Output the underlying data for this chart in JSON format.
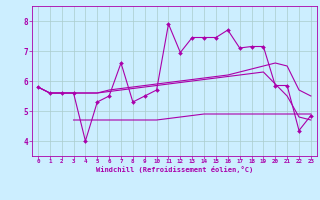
{
  "title": "",
  "xlabel": "Windchill (Refroidissement éolien,°C)",
  "background_color": "#cceeff",
  "grid_color": "#aacccc",
  "line_color": "#aa00aa",
  "xlim": [
    -0.5,
    23.5
  ],
  "ylim": [
    3.5,
    8.5
  ],
  "yticks": [
    4,
    5,
    6,
    7,
    8
  ],
  "xticks": [
    0,
    1,
    2,
    3,
    4,
    5,
    6,
    7,
    8,
    9,
    10,
    11,
    12,
    13,
    14,
    15,
    16,
    17,
    18,
    19,
    20,
    21,
    22,
    23
  ],
  "series1_x": [
    0,
    1,
    2,
    3,
    4,
    5,
    6,
    7,
    8,
    9,
    10,
    11,
    12,
    13,
    14,
    15,
    16,
    17,
    18,
    19,
    20,
    21,
    22,
    23
  ],
  "series1_y": [
    5.8,
    5.6,
    5.6,
    5.6,
    4.0,
    5.3,
    5.5,
    6.6,
    5.3,
    5.5,
    5.7,
    7.9,
    6.95,
    7.45,
    7.45,
    7.45,
    7.7,
    7.1,
    7.15,
    7.15,
    5.85,
    5.85,
    4.35,
    4.85
  ],
  "series2_x": [
    0,
    1,
    2,
    3,
    4,
    5,
    6,
    7,
    8,
    9,
    10,
    11,
    12,
    13,
    14,
    15,
    16,
    17,
    18,
    19,
    20,
    21,
    22,
    23
  ],
  "series2_y": [
    5.8,
    5.6,
    5.6,
    5.6,
    5.6,
    5.6,
    5.7,
    5.75,
    5.8,
    5.85,
    5.9,
    5.95,
    6.0,
    6.05,
    6.1,
    6.15,
    6.2,
    6.3,
    6.4,
    6.5,
    6.6,
    6.5,
    5.7,
    5.5
  ],
  "series3_x": [
    0,
    1,
    2,
    3,
    4,
    5,
    6,
    7,
    8,
    9,
    10,
    11,
    12,
    13,
    14,
    15,
    16,
    17,
    18,
    19,
    20,
    21,
    22,
    23
  ],
  "series3_y": [
    5.8,
    5.6,
    5.6,
    5.6,
    5.6,
    5.6,
    5.65,
    5.7,
    5.75,
    5.8,
    5.85,
    5.9,
    5.95,
    6.0,
    6.05,
    6.1,
    6.15,
    6.2,
    6.25,
    6.3,
    5.9,
    5.5,
    4.8,
    4.7
  ],
  "series4_x": [
    3,
    4,
    5,
    6,
    7,
    8,
    9,
    10,
    11,
    12,
    13,
    14,
    15,
    16,
    17,
    18,
    19,
    20,
    21,
    22,
    23
  ],
  "series4_y": [
    4.7,
    4.7,
    4.7,
    4.7,
    4.7,
    4.7,
    4.7,
    4.7,
    4.75,
    4.8,
    4.85,
    4.9,
    4.9,
    4.9,
    4.9,
    4.9,
    4.9,
    4.9,
    4.9,
    4.9,
    4.9
  ]
}
